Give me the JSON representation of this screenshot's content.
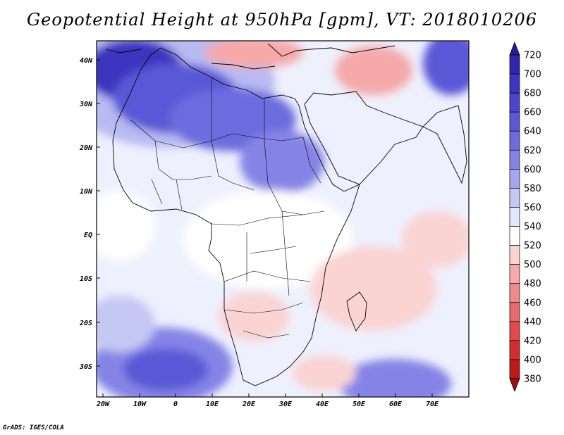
{
  "title": "Geopotential Height at 950hPa [gpm], VT: 2018010206",
  "credit": "GrADS: IGES/COLA",
  "lat_axis": [
    "40N",
    "30N",
    "20N",
    "10N",
    "EQ",
    "10S",
    "20S",
    "30S"
  ],
  "lon_axis": [
    "20W",
    "10W",
    "0",
    "10E",
    "20E",
    "30E",
    "40E",
    "50E",
    "60E",
    "70E"
  ],
  "colorbar": {
    "labels": [
      "720",
      "700",
      "680",
      "660",
      "640",
      "620",
      "600",
      "580",
      "560",
      "540",
      "520",
      "500",
      "480",
      "460",
      "440",
      "420",
      "400",
      "380"
    ],
    "colors": [
      "#2a1a96",
      "#3227ab",
      "#3c36c0",
      "#4a46cc",
      "#5a58d6",
      "#6d6cdf",
      "#8584e6",
      "#a5a5ee",
      "#c6c8f4",
      "#e3e5fb",
      "#ffffff",
      "#fbd3d3",
      "#f5a9a9",
      "#ef8a8a",
      "#e86b6b",
      "#df4a4a",
      "#d22e2e",
      "#bb1a1a",
      "#9c0f0f"
    ]
  }
}
